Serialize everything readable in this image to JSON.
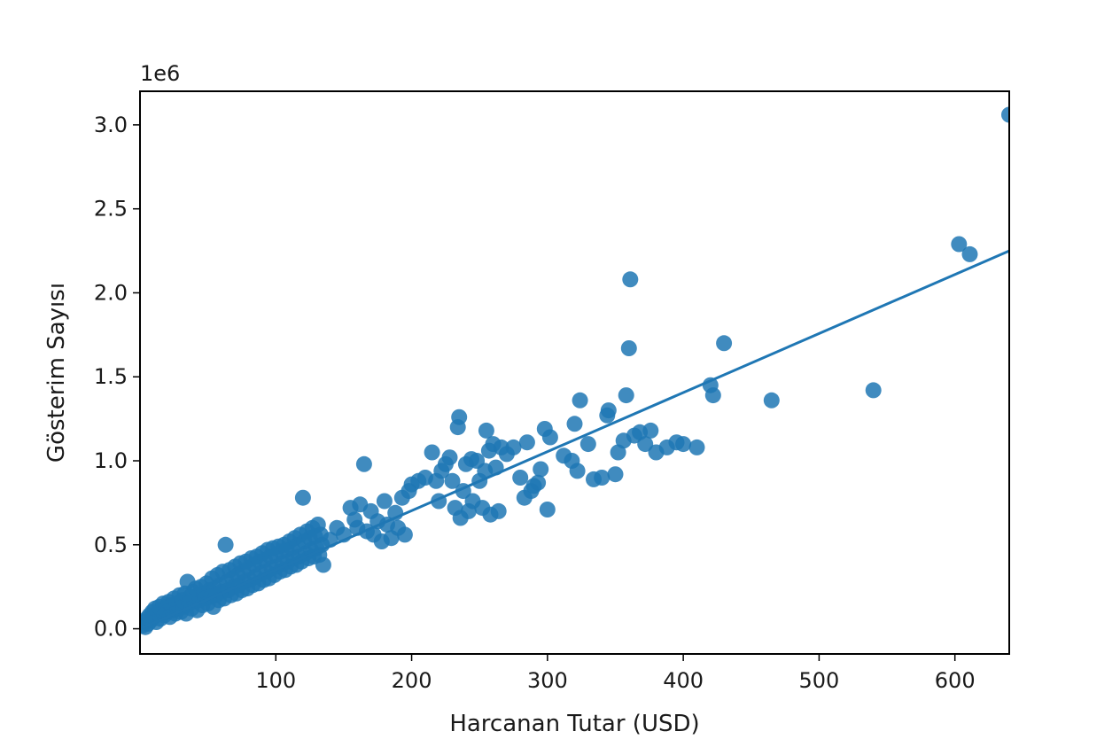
{
  "chart_data": {
    "type": "scatter",
    "title": "",
    "xlabel": "Harcanan Tutar (USD)",
    "ylabel": "Gösterim Sayısı",
    "y_offset_text": "1e6",
    "xlim": [
      0,
      640
    ],
    "ylim": [
      -150000,
      3200000
    ],
    "x_ticks": [
      100,
      200,
      300,
      400,
      500,
      600
    ],
    "x_tick_labels": [
      "100",
      "200",
      "300",
      "400",
      "500",
      "600"
    ],
    "y_ticks": [
      0,
      500000,
      1000000,
      1500000,
      2000000,
      2500000,
      3000000
    ],
    "y_tick_labels": [
      "0.0",
      "0.5",
      "1.0",
      "1.5",
      "2.0",
      "2.5",
      "3.0"
    ],
    "grid": false,
    "legend": "none",
    "colors": {
      "points": "#1f77b4",
      "regression_line": "#1f77b4",
      "axes": "#000000"
    },
    "regression_line": {
      "x": [
        0,
        640
      ],
      "y": [
        0,
        2250000
      ]
    },
    "series": [
      {
        "points": [
          [
            2,
            20000
          ],
          [
            3,
            40000
          ],
          [
            4,
            10000
          ],
          [
            5,
            60000
          ],
          [
            6,
            30000
          ],
          [
            7,
            80000
          ],
          [
            8,
            50000
          ],
          [
            9,
            100000
          ],
          [
            10,
            70000
          ],
          [
            11,
            120000
          ],
          [
            12,
            40000
          ],
          [
            13,
            90000
          ],
          [
            14,
            130000
          ],
          [
            15,
            60000
          ],
          [
            16,
            110000
          ],
          [
            17,
            150000
          ],
          [
            18,
            80000
          ],
          [
            19,
            130000
          ],
          [
            20,
            100000
          ],
          [
            21,
            160000
          ],
          [
            22,
            70000
          ],
          [
            23,
            140000
          ],
          [
            24,
            110000
          ],
          [
            25,
            180000
          ],
          [
            26,
            90000
          ],
          [
            27,
            150000
          ],
          [
            28,
            120000
          ],
          [
            29,
            200000
          ],
          [
            30,
            100000
          ],
          [
            31,
            170000
          ],
          [
            32,
            130000
          ],
          [
            33,
            210000
          ],
          [
            34,
            90000
          ],
          [
            35,
            280000
          ],
          [
            36,
            150000
          ],
          [
            37,
            190000
          ],
          [
            38,
            120000
          ],
          [
            39,
            220000
          ],
          [
            40,
            160000
          ],
          [
            41,
            240000
          ],
          [
            42,
            110000
          ],
          [
            43,
            200000
          ],
          [
            44,
            170000
          ],
          [
            45,
            250000
          ],
          [
            46,
            140000
          ],
          [
            47,
            210000
          ],
          [
            48,
            180000
          ],
          [
            49,
            270000
          ],
          [
            50,
            150000
          ],
          [
            51,
            230000
          ],
          [
            52,
            190000
          ],
          [
            53,
            300000
          ],
          [
            54,
            130000
          ],
          [
            55,
            240000
          ],
          [
            56,
            200000
          ],
          [
            57,
            320000
          ],
          [
            58,
            170000
          ],
          [
            59,
            260000
          ],
          [
            60,
            220000
          ],
          [
            61,
            340000
          ],
          [
            62,
            180000
          ],
          [
            63,
            500000
          ],
          [
            64,
            280000
          ],
          [
            65,
            230000
          ],
          [
            66,
            350000
          ],
          [
            67,
            200000
          ],
          [
            68,
            300000
          ],
          [
            69,
            250000
          ],
          [
            70,
            370000
          ],
          [
            71,
            210000
          ],
          [
            72,
            320000
          ],
          [
            73,
            260000
          ],
          [
            74,
            390000
          ],
          [
            75,
            230000
          ],
          [
            76,
            340000
          ],
          [
            77,
            280000
          ],
          [
            78,
            400000
          ],
          [
            79,
            240000
          ],
          [
            80,
            360000
          ],
          [
            81,
            290000
          ],
          [
            82,
            420000
          ],
          [
            83,
            260000
          ],
          [
            84,
            380000
          ],
          [
            85,
            310000
          ],
          [
            86,
            430000
          ],
          [
            87,
            270000
          ],
          [
            88,
            400000
          ],
          [
            89,
            330000
          ],
          [
            90,
            450000
          ],
          [
            91,
            290000
          ],
          [
            92,
            410000
          ],
          [
            93,
            340000
          ],
          [
            94,
            470000
          ],
          [
            95,
            300000
          ],
          [
            96,
            430000
          ],
          [
            97,
            360000
          ],
          [
            98,
            480000
          ],
          [
            99,
            320000
          ],
          [
            100,
            440000
          ],
          [
            101,
            370000
          ],
          [
            102,
            490000
          ],
          [
            103,
            340000
          ],
          [
            104,
            460000
          ],
          [
            105,
            390000
          ],
          [
            106,
            500000
          ],
          [
            107,
            350000
          ],
          [
            108,
            470000
          ],
          [
            109,
            400000
          ],
          [
            110,
            520000
          ],
          [
            111,
            370000
          ],
          [
            112,
            480000
          ],
          [
            113,
            420000
          ],
          [
            114,
            540000
          ],
          [
            115,
            380000
          ],
          [
            116,
            500000
          ],
          [
            117,
            430000
          ],
          [
            118,
            560000
          ],
          [
            119,
            400000
          ],
          [
            120,
            780000
          ],
          [
            121,
            520000
          ],
          [
            122,
            450000
          ],
          [
            123,
            580000
          ],
          [
            124,
            420000
          ],
          [
            125,
            540000
          ],
          [
            126,
            470000
          ],
          [
            127,
            600000
          ],
          [
            128,
            430000
          ],
          [
            129,
            550000
          ],
          [
            130,
            480000
          ],
          [
            131,
            620000
          ],
          [
            132,
            440000
          ],
          [
            133,
            560000
          ],
          [
            134,
            500000
          ],
          [
            135,
            380000
          ],
          [
            140,
            530000
          ],
          [
            145,
            600000
          ],
          [
            150,
            560000
          ],
          [
            155,
            720000
          ],
          [
            158,
            650000
          ],
          [
            160,
            600000
          ],
          [
            162,
            740000
          ],
          [
            165,
            980000
          ],
          [
            167,
            580000
          ],
          [
            170,
            700000
          ],
          [
            172,
            560000
          ],
          [
            175,
            640000
          ],
          [
            178,
            520000
          ],
          [
            180,
            760000
          ],
          [
            182,
            620000
          ],
          [
            185,
            540000
          ],
          [
            188,
            690000
          ],
          [
            190,
            600000
          ],
          [
            193,
            780000
          ],
          [
            195,
            560000
          ],
          [
            198,
            820000
          ],
          [
            200,
            860000
          ],
          [
            205,
            880000
          ],
          [
            210,
            900000
          ],
          [
            215,
            1050000
          ],
          [
            218,
            880000
          ],
          [
            220,
            760000
          ],
          [
            222,
            940000
          ],
          [
            225,
            980000
          ],
          [
            228,
            1020000
          ],
          [
            230,
            880000
          ],
          [
            232,
            720000
          ],
          [
            234,
            1200000
          ],
          [
            235,
            1260000
          ],
          [
            236,
            660000
          ],
          [
            238,
            820000
          ],
          [
            240,
            980000
          ],
          [
            242,
            700000
          ],
          [
            244,
            1010000
          ],
          [
            245,
            760000
          ],
          [
            248,
            1000000
          ],
          [
            250,
            880000
          ],
          [
            252,
            720000
          ],
          [
            254,
            940000
          ],
          [
            255,
            1180000
          ],
          [
            257,
            1060000
          ],
          [
            258,
            680000
          ],
          [
            260,
            1100000
          ],
          [
            262,
            960000
          ],
          [
            264,
            700000
          ],
          [
            266,
            1080000
          ],
          [
            270,
            1040000
          ],
          [
            275,
            1080000
          ],
          [
            280,
            900000
          ],
          [
            283,
            780000
          ],
          [
            285,
            1110000
          ],
          [
            288,
            820000
          ],
          [
            290,
            850000
          ],
          [
            293,
            870000
          ],
          [
            295,
            950000
          ],
          [
            298,
            1190000
          ],
          [
            300,
            710000
          ],
          [
            302,
            1140000
          ],
          [
            312,
            1030000
          ],
          [
            318,
            1000000
          ],
          [
            320,
            1220000
          ],
          [
            322,
            940000
          ],
          [
            324,
            1360000
          ],
          [
            330,
            1100000
          ],
          [
            334,
            890000
          ],
          [
            340,
            900000
          ],
          [
            344,
            1270000
          ],
          [
            345,
            1300000
          ],
          [
            350,
            920000
          ],
          [
            352,
            1050000
          ],
          [
            356,
            1120000
          ],
          [
            358,
            1390000
          ],
          [
            360,
            1670000
          ],
          [
            361,
            2080000
          ],
          [
            364,
            1150000
          ],
          [
            368,
            1170000
          ],
          [
            372,
            1100000
          ],
          [
            376,
            1180000
          ],
          [
            380,
            1050000
          ],
          [
            388,
            1080000
          ],
          [
            395,
            1110000
          ],
          [
            400,
            1100000
          ],
          [
            410,
            1080000
          ],
          [
            420,
            1450000
          ],
          [
            422,
            1390000
          ],
          [
            430,
            1700000
          ],
          [
            465,
            1360000
          ],
          [
            540,
            1420000
          ],
          [
            603,
            2290000
          ],
          [
            611,
            2230000
          ],
          [
            640,
            3060000
          ]
        ]
      }
    ]
  }
}
